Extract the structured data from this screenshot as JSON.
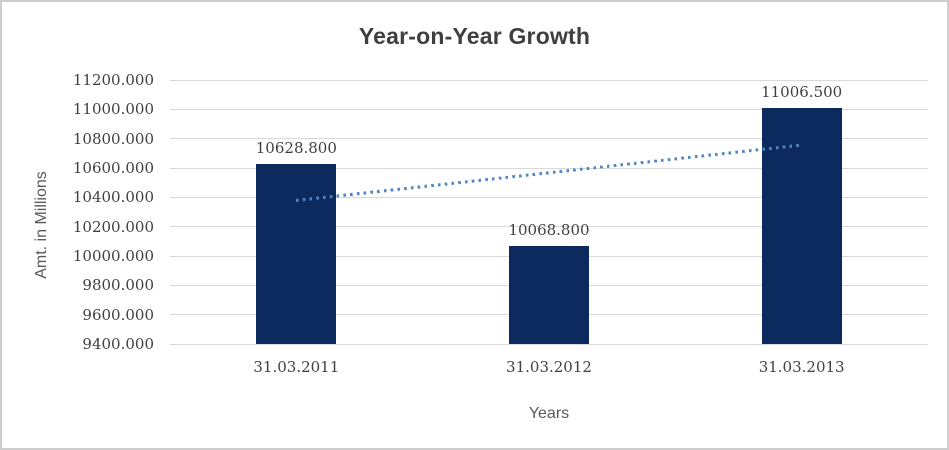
{
  "chart_data": {
    "type": "bar",
    "title": "Year-on-Year Growth",
    "xlabel": "Years",
    "ylabel": "Amt. in Millions",
    "categories": [
      "31.03.2011",
      "31.03.2012",
      "31.03.2013"
    ],
    "values": [
      10628.8,
      10068.8,
      11006.5
    ],
    "value_labels": [
      "10628.800",
      "10068.800",
      "11006.500"
    ],
    "ylim": [
      9400,
      11200
    ],
    "y_tick_step": 200,
    "y_tick_labels": [
      "9400.000",
      "9600.000",
      "9800.000",
      "10000.000",
      "10200.000",
      "10400.000",
      "10600.000",
      "10800.000",
      "11000.000",
      "11200.000"
    ],
    "grid": true,
    "legend_position": "none",
    "trendline": {
      "type": "linear",
      "style": "dotted",
      "start_value": 10379.2,
      "end_value": 10757.0
    },
    "colors": {
      "bar": "#0d2a5e",
      "trendline": "#4e86c6",
      "gridline": "#d9d9d9",
      "title_text": "#3f3f3f",
      "tick_text": "#404040",
      "axis_title_text": "#595959",
      "chart_border": "#cdcdcd",
      "background": "#ffffff"
    }
  }
}
